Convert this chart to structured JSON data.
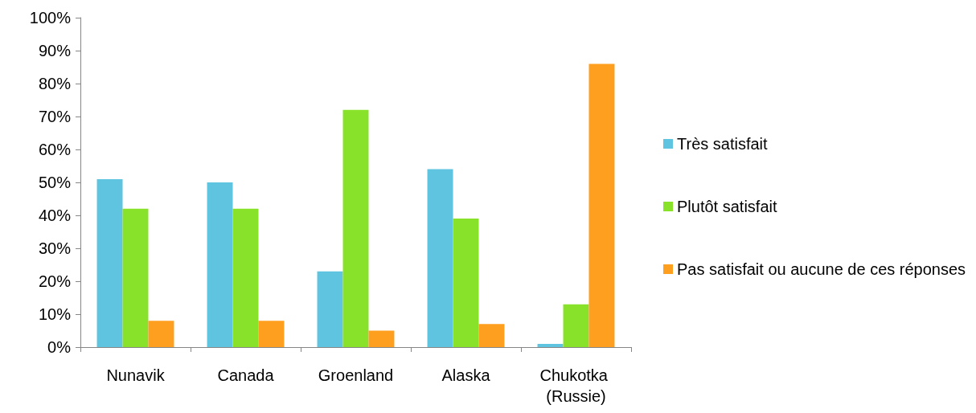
{
  "chart_data": {
    "type": "bar",
    "categories": [
      "Nunavik",
      "Canada",
      "Groenland",
      "Alaska",
      "Chukotka (Russie)"
    ],
    "series": [
      {
        "name": "Très satisfait",
        "color": "#5ec4e0",
        "values": [
          51,
          50,
          23,
          54,
          1
        ]
      },
      {
        "name": "Plutôt satisfait",
        "color": "#88e22a",
        "values": [
          42,
          42,
          72,
          39,
          13
        ]
      },
      {
        "name": "Pas satisfait ou aucune de ces réponses",
        "color": "#ff9f1f",
        "values": [
          8,
          8,
          5,
          7,
          86
        ]
      }
    ],
    "ylim": [
      0,
      100
    ],
    "yticks": [
      {
        "value": 0,
        "label": "0%"
      },
      {
        "value": 10,
        "label": "10%"
      },
      {
        "value": 20,
        "label": "20%"
      },
      {
        "value": 30,
        "label": "30%"
      },
      {
        "value": 40,
        "label": "40%"
      },
      {
        "value": 50,
        "label": "50%"
      },
      {
        "value": 60,
        "label": "60%"
      },
      {
        "value": 70,
        "label": "70%"
      },
      {
        "value": 80,
        "label": "80%"
      },
      {
        "value": 90,
        "label": "90%"
      },
      {
        "value": 100,
        "label": "100%"
      }
    ],
    "grid": false,
    "legend": "right"
  }
}
